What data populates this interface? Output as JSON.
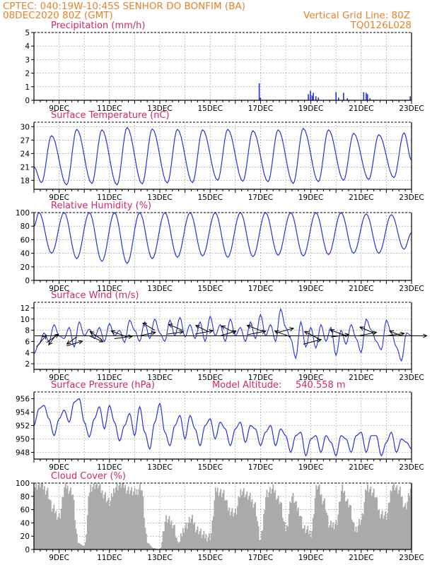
{
  "header": {
    "line1_left": "CPTEC:   040:19W-10:45S  SENHOR DO BONFIM (BA)",
    "line2_left": "08DEC2020 80Z (GMT)",
    "line2_right": "Vertical Grid Line: 80Z",
    "line3_right": "TQ0126L028"
  },
  "colors": {
    "header": "#e8822a",
    "title": "#d6256d",
    "line": "#2233dd",
    "cloud": "#aaaaaa",
    "axis": "#000000"
  },
  "chart_data": [
    {
      "id": "precip",
      "type": "bar",
      "title": "Precipitation (mm/h)",
      "x_tick_labels": [
        "9DEC",
        "11DEC",
        "13DEC",
        "15DEC",
        "17DEC",
        "19DEC",
        "21DEC",
        "23DEC"
      ],
      "x_range_days": [
        8.0,
        23.0
      ],
      "ylim": [
        0,
        5
      ],
      "yticks": [
        0,
        1,
        2,
        3,
        4,
        5
      ],
      "points": [
        [
          8.3,
          0.05
        ],
        [
          9.2,
          0.03
        ],
        [
          10.1,
          0.02
        ],
        [
          16.95,
          1.25
        ],
        [
          17.0,
          0.2
        ],
        [
          18.9,
          0.45
        ],
        [
          18.98,
          0.7
        ],
        [
          19.05,
          0.35
        ],
        [
          19.1,
          0.55
        ],
        [
          19.2,
          0.3
        ],
        [
          19.3,
          0.2
        ],
        [
          20.0,
          0.6
        ],
        [
          20.1,
          0.2
        ],
        [
          20.3,
          0.55
        ],
        [
          20.45,
          0.15
        ],
        [
          21.1,
          0.6
        ],
        [
          21.2,
          0.55
        ],
        [
          21.25,
          0.45
        ],
        [
          21.35,
          0.15
        ],
        [
          22.2,
          0.05
        ],
        [
          22.95,
          0.3
        ]
      ]
    },
    {
      "id": "temp",
      "type": "line",
      "title": "Surface Temperature (nC)",
      "x_tick_labels": [
        "9DEC",
        "11DEC",
        "13DEC",
        "15DEC",
        "17DEC",
        "19DEC",
        "21DEC",
        "23DEC"
      ],
      "x_range_days": [
        8.0,
        23.0
      ],
      "ylim": [
        16,
        31
      ],
      "yticks": [
        18,
        21,
        24,
        27,
        30
      ],
      "min_values": [
        17.5,
        17.0,
        17.3,
        17.0,
        17.2,
        17.4,
        17.5,
        18.0,
        17.8,
        17.7,
        17.3,
        17.7,
        18.0,
        18.2,
        18.6
      ],
      "max_values": [
        28.0,
        29.4,
        29.3,
        29.8,
        29.5,
        29.4,
        29.3,
        29.4,
        29.1,
        29.3,
        29.6,
        29.3,
        28.5,
        28.2,
        28.6
      ]
    },
    {
      "id": "rh",
      "type": "line",
      "title": "Relative Humidity (%)",
      "x_tick_labels": [
        "9DEC",
        "11DEC",
        "13DEC",
        "15DEC",
        "17DEC",
        "19DEC",
        "21DEC",
        "23DEC"
      ],
      "x_range_days": [
        8.0,
        23.0
      ],
      "ylim": [
        0,
        100
      ],
      "yticks": [
        0,
        20,
        40,
        60,
        80,
        100
      ],
      "max_values": [
        100,
        100,
        100,
        100,
        100,
        100,
        100,
        100,
        100,
        100,
        100,
        100,
        100,
        98,
        97
      ],
      "min_values": [
        40,
        32,
        28,
        25,
        32,
        34,
        36,
        34,
        35,
        37,
        36,
        38,
        40,
        40,
        46
      ]
    },
    {
      "id": "wind",
      "type": "line",
      "title": "Surface Wind (m/s)",
      "x_tick_labels": [
        "9DEC",
        "11DEC",
        "13DEC",
        "15DEC",
        "17DEC",
        "19DEC",
        "21DEC",
        "23DEC"
      ],
      "x_range_days": [
        8.0,
        23.0
      ],
      "ylim": [
        1,
        13
      ],
      "yticks": [
        2,
        4,
        6,
        8,
        10,
        12
      ],
      "speed_values": [
        [
          8.0,
          3.8
        ],
        [
          8.2,
          5.5
        ],
        [
          8.4,
          7.5
        ],
        [
          8.6,
          6.0
        ],
        [
          8.8,
          9.0
        ],
        [
          9.0,
          7.0
        ],
        [
          9.2,
          6.5
        ],
        [
          9.4,
          8.5
        ],
        [
          9.6,
          5.0
        ],
        [
          9.8,
          9.5
        ],
        [
          10.0,
          7.0
        ],
        [
          10.2,
          8.2
        ],
        [
          10.4,
          6.5
        ],
        [
          10.6,
          8.5
        ],
        [
          10.8,
          6.0
        ],
        [
          11.0,
          9.2
        ],
        [
          11.2,
          7.0
        ],
        [
          11.4,
          8.0
        ],
        [
          11.6,
          5.8
        ],
        [
          11.8,
          9.8
        ],
        [
          12.0,
          8.0
        ],
        [
          12.2,
          6.0
        ],
        [
          12.4,
          9.5
        ],
        [
          12.6,
          6.5
        ],
        [
          12.8,
          10.0
        ],
        [
          13.0,
          7.5
        ],
        [
          13.2,
          6.0
        ],
        [
          13.4,
          9.8
        ],
        [
          13.6,
          7.0
        ],
        [
          13.8,
          10.3
        ],
        [
          14.0,
          6.8
        ],
        [
          14.2,
          9.0
        ],
        [
          14.4,
          6.5
        ],
        [
          14.6,
          9.5
        ],
        [
          14.8,
          6.0
        ],
        [
          15.0,
          10.5
        ],
        [
          15.2,
          7.0
        ],
        [
          15.4,
          9.0
        ],
        [
          15.6,
          6.0
        ],
        [
          15.8,
          10.0
        ],
        [
          16.0,
          7.0
        ],
        [
          16.2,
          8.5
        ],
        [
          16.4,
          6.0
        ],
        [
          16.6,
          9.5
        ],
        [
          16.8,
          6.5
        ],
        [
          17.0,
          10.8
        ],
        [
          17.2,
          7.0
        ],
        [
          17.4,
          9.0
        ],
        [
          17.6,
          6.0
        ],
        [
          17.8,
          11.8
        ],
        [
          18.0,
          8.5
        ],
        [
          18.2,
          6.5
        ],
        [
          18.4,
          3.0
        ],
        [
          18.6,
          9.5
        ],
        [
          18.8,
          5.0
        ],
        [
          19.0,
          8.5
        ],
        [
          19.2,
          4.8
        ],
        [
          19.4,
          9.0
        ],
        [
          19.6,
          6.0
        ],
        [
          19.8,
          8.5
        ],
        [
          20.0,
          3.5
        ],
        [
          20.2,
          8.0
        ],
        [
          20.4,
          5.5
        ],
        [
          20.6,
          9.0
        ],
        [
          20.8,
          6.5
        ],
        [
          21.0,
          4.0
        ],
        [
          21.2,
          10.0
        ],
        [
          21.4,
          8.0
        ],
        [
          21.6,
          6.0
        ],
        [
          21.8,
          4.5
        ],
        [
          22.0,
          9.8
        ],
        [
          22.2,
          7.5
        ],
        [
          22.4,
          5.0
        ],
        [
          22.6,
          2.5
        ],
        [
          22.8,
          7.5
        ],
        [
          23.0,
          7.0
        ]
      ],
      "vectors": [
        [
          8.1,
          5.0,
          0.5,
          1.0
        ],
        [
          8.5,
          5.8,
          0.6,
          0.7
        ],
        [
          8.9,
          7.3,
          -0.4,
          -0.9
        ],
        [
          9.3,
          5.2,
          0.8,
          0.4
        ],
        [
          9.7,
          6.8,
          -0.5,
          -0.6
        ],
        [
          10.2,
          7.0,
          0.7,
          -0.5
        ],
        [
          10.7,
          6.3,
          -0.6,
          0.7
        ],
        [
          11.2,
          6.5,
          0.9,
          0.2
        ],
        [
          11.7,
          6.8,
          -0.8,
          0.5
        ],
        [
          12.2,
          7.0,
          0.8,
          0.3
        ],
        [
          12.8,
          8.0,
          -0.6,
          0.6
        ],
        [
          13.3,
          7.3,
          0.8,
          0.2
        ],
        [
          13.9,
          8.0,
          -0.7,
          0.5
        ],
        [
          14.4,
          7.3,
          0.9,
          0.3
        ],
        [
          14.9,
          7.8,
          -0.6,
          0.5
        ],
        [
          15.4,
          7.0,
          0.8,
          0.4
        ],
        [
          16.0,
          7.5,
          -0.7,
          0.6
        ],
        [
          16.5,
          7.2,
          0.9,
          0.3
        ],
        [
          17.1,
          7.8,
          -0.8,
          0.5
        ],
        [
          17.6,
          7.5,
          0.9,
          0.4
        ],
        [
          18.2,
          6.8,
          -0.8,
          0.5
        ],
        [
          18.7,
          5.5,
          0.9,
          0.4
        ],
        [
          19.3,
          6.5,
          -0.7,
          0.6
        ],
        [
          19.8,
          6.8,
          0.9,
          0.2
        ],
        [
          20.4,
          7.0,
          -0.8,
          0.5
        ],
        [
          20.9,
          7.0,
          0.9,
          0.3
        ],
        [
          21.5,
          7.5,
          -0.7,
          0.5
        ],
        [
          22.0,
          7.0,
          0.9,
          0.2
        ],
        [
          22.6,
          7.0,
          -0.6,
          0.4
        ],
        [
          22.9,
          7.0,
          0.9,
          0.0
        ]
      ]
    },
    {
      "id": "pres",
      "type": "line",
      "title": "Surface Pressure (hPa)",
      "annotation_left": "Model Altitude:",
      "annotation_value": "540.558 m",
      "x_tick_labels": [
        "9DEC",
        "11DEC",
        "13DEC",
        "15DEC",
        "17DEC",
        "19DEC",
        "21DEC",
        "23DEC"
      ],
      "x_range_days": [
        8.0,
        23.0
      ],
      "ylim": [
        947,
        957
      ],
      "yticks": [
        948,
        950,
        952,
        954,
        956
      ],
      "values": [
        [
          8.0,
          952.0
        ],
        [
          8.2,
          954.5
        ],
        [
          8.4,
          955.0
        ],
        [
          8.6,
          953.0
        ],
        [
          8.8,
          950.5
        ],
        [
          9.0,
          953.0
        ],
        [
          9.2,
          954.3
        ],
        [
          9.4,
          952.5
        ],
        [
          9.6,
          955.5
        ],
        [
          9.8,
          956.0
        ],
        [
          10.0,
          952.5
        ],
        [
          10.2,
          950.3
        ],
        [
          10.4,
          953.0
        ],
        [
          10.6,
          954.8
        ],
        [
          10.8,
          951.5
        ],
        [
          11.0,
          955.0
        ],
        [
          11.2,
          952.5
        ],
        [
          11.4,
          949.7
        ],
        [
          11.6,
          952.0
        ],
        [
          11.8,
          953.8
        ],
        [
          12.0,
          950.5
        ],
        [
          12.2,
          954.8
        ],
        [
          12.4,
          951.0
        ],
        [
          12.6,
          948.5
        ],
        [
          12.8,
          952.5
        ],
        [
          13.0,
          955.3
        ],
        [
          13.2,
          951.0
        ],
        [
          13.4,
          949.0
        ],
        [
          13.6,
          952.0
        ],
        [
          13.8,
          953.5
        ],
        [
          14.0,
          950.0
        ],
        [
          14.2,
          953.5
        ],
        [
          14.4,
          951.5
        ],
        [
          14.6,
          949.0
        ],
        [
          14.8,
          952.0
        ],
        [
          15.0,
          953.0
        ],
        [
          15.2,
          950.0
        ],
        [
          15.4,
          952.5
        ],
        [
          15.6,
          951.5
        ],
        [
          15.8,
          949.0
        ],
        [
          16.0,
          951.5
        ],
        [
          16.2,
          952.5
        ],
        [
          16.4,
          949.5
        ],
        [
          16.6,
          952.0
        ],
        [
          16.8,
          951.5
        ],
        [
          17.0,
          949.0
        ],
        [
          17.2,
          951.0
        ],
        [
          17.4,
          952.0
        ],
        [
          17.6,
          949.0
        ],
        [
          17.8,
          951.5
        ],
        [
          18.0,
          950.5
        ],
        [
          18.2,
          948.0
        ],
        [
          18.4,
          950.5
        ],
        [
          18.6,
          951.0
        ],
        [
          18.8,
          947.5
        ],
        [
          19.0,
          950.0
        ],
        [
          19.2,
          950.5
        ],
        [
          19.4,
          948.0
        ],
        [
          19.6,
          950.5
        ],
        [
          19.8,
          949.5
        ],
        [
          20.0,
          947.5
        ],
        [
          20.2,
          950.5
        ],
        [
          20.4,
          950.0
        ],
        [
          20.6,
          948.0
        ],
        [
          20.8,
          950.5
        ],
        [
          21.0,
          951.0
        ],
        [
          21.2,
          948.0
        ],
        [
          21.4,
          950.5
        ],
        [
          21.6,
          950.5
        ],
        [
          21.8,
          947.5
        ],
        [
          22.0,
          949.5
        ],
        [
          22.2,
          951.0
        ],
        [
          22.4,
          948.0
        ],
        [
          22.6,
          950.0
        ],
        [
          22.8,
          949.5
        ],
        [
          23.0,
          948.5
        ]
      ]
    },
    {
      "id": "cloud",
      "type": "bar",
      "title": "Cloud Cover (%)",
      "x_tick_labels": [
        "9DEC",
        "11DEC",
        "13DEC",
        "15DEC",
        "17DEC",
        "19DEC",
        "21DEC",
        "23DEC"
      ],
      "x_range_days": [
        8.0,
        23.0
      ],
      "ylim": [
        0,
        100
      ],
      "yticks": [
        0,
        20,
        40,
        60,
        80,
        100
      ],
      "values": [
        [
          8.0,
          95
        ],
        [
          8.25,
          98
        ],
        [
          8.5,
          90
        ],
        [
          8.75,
          60
        ],
        [
          9.0,
          50
        ],
        [
          9.25,
          95
        ],
        [
          9.5,
          88
        ],
        [
          9.75,
          10
        ],
        [
          10.0,
          5
        ],
        [
          10.25,
          95
        ],
        [
          10.5,
          98
        ],
        [
          10.75,
          85
        ],
        [
          11.0,
          70
        ],
        [
          11.25,
          95
        ],
        [
          11.5,
          98
        ],
        [
          11.75,
          90
        ],
        [
          12.0,
          85
        ],
        [
          12.25,
          95
        ],
        [
          12.5,
          10
        ],
        [
          12.75,
          2
        ],
        [
          13.0,
          0
        ],
        [
          13.25,
          45
        ],
        [
          13.5,
          40
        ],
        [
          13.75,
          10
        ],
        [
          14.0,
          35
        ],
        [
          14.25,
          45
        ],
        [
          14.5,
          30
        ],
        [
          14.75,
          20
        ],
        [
          15.0,
          20
        ],
        [
          15.25,
          90
        ],
        [
          15.5,
          85
        ],
        [
          15.75,
          60
        ],
        [
          16.0,
          55
        ],
        [
          16.25,
          90
        ],
        [
          16.5,
          80
        ],
        [
          16.75,
          70
        ],
        [
          17.0,
          15
        ],
        [
          17.25,
          85
        ],
        [
          17.5,
          90
        ],
        [
          17.75,
          75
        ],
        [
          18.0,
          30
        ],
        [
          18.25,
          80
        ],
        [
          18.5,
          60
        ],
        [
          18.75,
          30
        ],
        [
          19.0,
          25
        ],
        [
          19.25,
          95
        ],
        [
          19.5,
          75
        ],
        [
          19.75,
          35
        ],
        [
          20.0,
          40
        ],
        [
          20.25,
          90
        ],
        [
          20.5,
          70
        ],
        [
          20.75,
          30
        ],
        [
          21.0,
          45
        ],
        [
          21.25,
          95
        ],
        [
          21.5,
          85
        ],
        [
          21.75,
          55
        ],
        [
          22.0,
          50
        ],
        [
          22.25,
          98
        ],
        [
          22.5,
          88
        ],
        [
          22.75,
          65
        ],
        [
          23.0,
          92
        ]
      ]
    }
  ]
}
